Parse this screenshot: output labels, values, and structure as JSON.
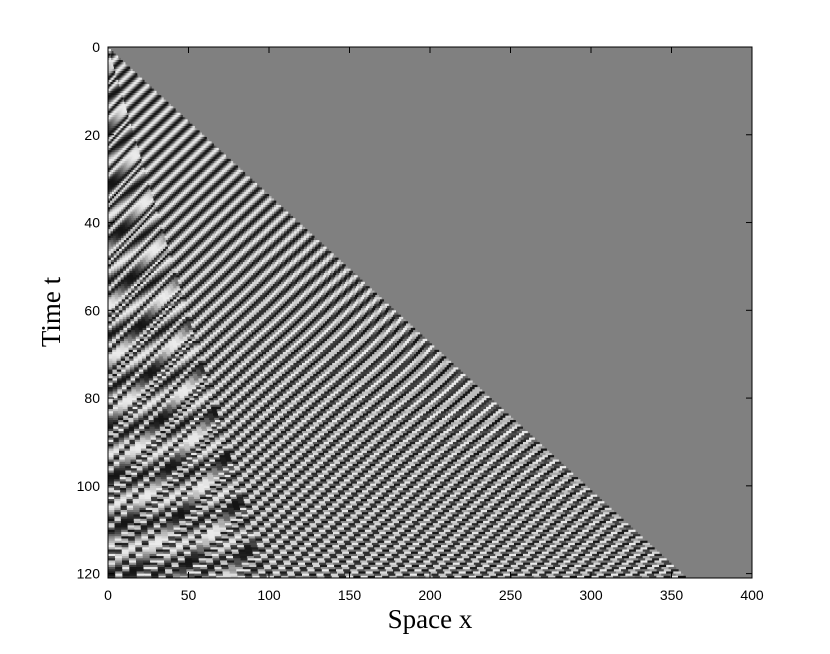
{
  "chart_data": {
    "type": "heatmap",
    "title": "",
    "xlabel": "Space x",
    "ylabel": "Time t",
    "xlim": [
      0,
      400
    ],
    "ylim": [
      121,
      0
    ],
    "x_ticks": [
      0,
      50,
      100,
      150,
      200,
      250,
      300,
      350,
      400
    ],
    "y_ticks": [
      0,
      20,
      40,
      60,
      80,
      100,
      120
    ],
    "colormap": "gray",
    "background_value_color": "#808080",
    "front": {
      "x_at_t0": 0,
      "x_at_t121": 360
    },
    "band_slope_x_per_t": 3,
    "disordered_region_max_x": [
      0,
      100
    ]
  }
}
